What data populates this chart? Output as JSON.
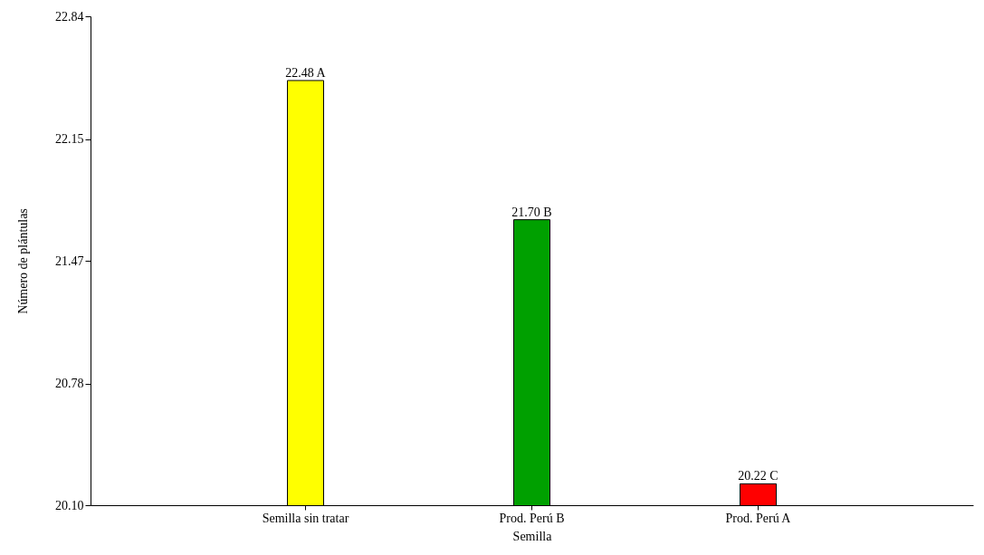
{
  "chart_data": {
    "type": "bar",
    "xlabel": "Semilla",
    "ylabel": "Número de plántulas",
    "categories": [
      "Semilla sin tratar",
      "Prod. Perú B",
      "Prod. Perú A"
    ],
    "values": [
      22.48,
      21.7,
      20.22
    ],
    "colors": [
      "#ffff00",
      "#00a000",
      "#ff0000"
    ],
    "value_labels": [
      "22.48 A",
      "21.70 B",
      "20.22 C"
    ],
    "ylim": [
      20.1,
      22.84
    ],
    "yticks": [
      {
        "value": 20.1,
        "label": "20.10"
      },
      20.78,
      21.47,
      22.15,
      22.84
    ],
    "grid": false
  }
}
